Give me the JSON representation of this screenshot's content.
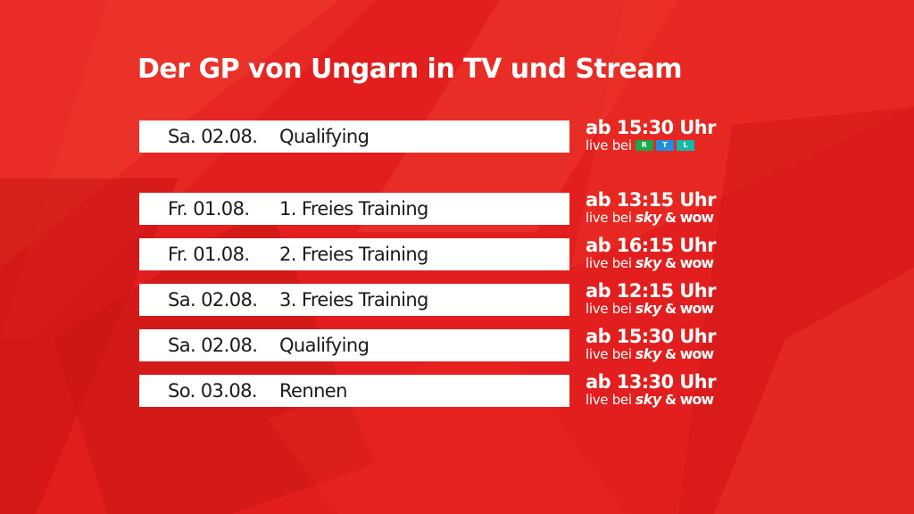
{
  "title": "Der GP von Ungarn in TV und Stream",
  "colors": {
    "background": "#e31e1e",
    "bar": "#ffffff",
    "rtl": [
      "#1aa84a",
      "#1e8fe0",
      "#16b8a6"
    ]
  },
  "schedule": [
    {
      "date": "Sa. 02.08.",
      "session": "Qualifying",
      "time": "ab 15:30 Uhr",
      "live_prefix": "live bei",
      "broadcaster": "rtl",
      "rtl_letters": [
        "R",
        "T",
        "L"
      ]
    },
    {
      "date": "Fr. 01.08.",
      "session": "1. Freies Training",
      "time": "ab 13:15 Uhr",
      "live_prefix": "live bei",
      "broadcaster": "sky-wow",
      "sky": "sky",
      "amp": "&",
      "wow": "wow"
    },
    {
      "date": "Fr. 01.08.",
      "session": "2. Freies Training",
      "time": "ab 16:15 Uhr",
      "live_prefix": "live bei",
      "broadcaster": "sky-wow",
      "sky": "sky",
      "amp": "&",
      "wow": "wow"
    },
    {
      "date": "Sa. 02.08.",
      "session": "3. Freies Training",
      "time": "ab 12:15 Uhr",
      "live_prefix": "live bei",
      "broadcaster": "sky-wow",
      "sky": "sky",
      "amp": "&",
      "wow": "wow"
    },
    {
      "date": "Sa. 02.08.",
      "session": "Qualifying",
      "time": "ab 15:30 Uhr",
      "live_prefix": "live bei",
      "broadcaster": "sky-wow",
      "sky": "sky",
      "amp": "&",
      "wow": "wow"
    },
    {
      "date": "So. 03.08.",
      "session": "Rennen",
      "time": "ab 13:30 Uhr",
      "live_prefix": "live bei",
      "broadcaster": "sky-wow",
      "sky": "sky",
      "amp": "&",
      "wow": "wow"
    }
  ]
}
